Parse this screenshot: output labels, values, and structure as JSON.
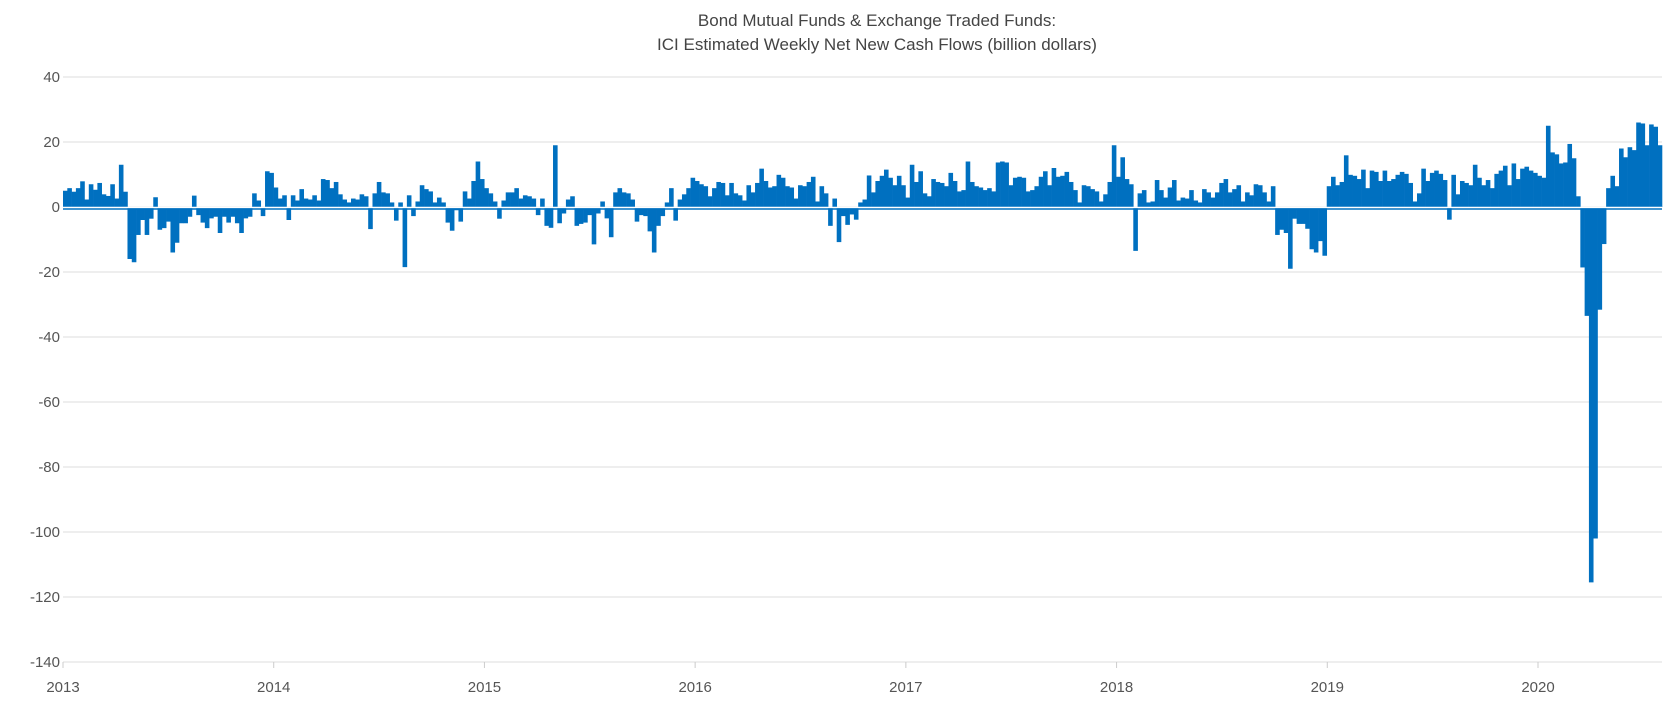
{
  "chart_data": {
    "type": "bar",
    "title": [
      "Bond Mutual Funds & Exchange Traded Funds:",
      "ICI Estimated Weekly Net New Cash Flows (billion dollars)"
    ],
    "xlabel": "",
    "ylabel": "",
    "frequency": "weekly",
    "xlim": [
      "2013-01",
      "2020-06"
    ],
    "x_tick_labels": [
      "2013",
      "2014",
      "2015",
      "2016",
      "2017",
      "2018",
      "2019",
      "2020"
    ],
    "ylim": [
      -140,
      40
    ],
    "y_ticks": [
      40,
      20,
      0,
      -20,
      -40,
      -60,
      -80,
      -100,
      -120,
      -140
    ],
    "grid": "horizontal",
    "legend": "none",
    "color": "#0070c0",
    "values": [
      5,
      5.8,
      4.7,
      5.8,
      7.9,
      2.3,
      7,
      5.3,
      7.4,
      3.9,
      3.4,
      7,
      2.6,
      13,
      4.7,
      -16,
      -17,
      -8.6,
      -4,
      -8.6,
      -3.6,
      3,
      -7,
      -6.5,
      -4.5,
      -14,
      -11,
      -5,
      -5,
      -3,
      3.5,
      -2.5,
      -4.8,
      -6.5,
      -3.5,
      -3,
      -8,
      -3,
      -4.8,
      -3,
      -5,
      -8,
      -3.5,
      -3,
      4.2,
      2,
      -2.8,
      11,
      10.5,
      6,
      2.6,
      3.6,
      -4,
      3.6,
      2,
      5.5,
      2.6,
      2.3,
      3.6,
      2,
      8.6,
      8.3,
      5.8,
      7.7,
      3.9,
      2.3,
      1.4,
      2.6,
      2.3,
      3.9,
      3.3,
      -6.8,
      4.2,
      7.7,
      4.5,
      4.2,
      1.4,
      -4.2,
      1.4,
      -18.5,
      3.6,
      -2.8,
      1.7,
      6.7,
      5.5,
      4.8,
      1.4,
      2.9,
      1.4,
      -4.8,
      -7.3,
      -1,
      -4.5,
      4.8,
      2.6,
      8,
      14,
      8.6,
      5.8,
      4.2,
      1.7,
      -3.6,
      2,
      4.5,
      4.5,
      5.8,
      2.6,
      3.6,
      3.3,
      2.6,
      -2.5,
      2.6,
      -5.8,
      -6.4,
      19,
      -5,
      -2,
      2.3,
      3.3,
      -5.8,
      -5.2,
      -4.8,
      -2.5,
      -11.5,
      -2,
      1.7,
      -3.5,
      -9.3,
      4.5,
      5.8,
      4.5,
      4.2,
      2.3,
      -4.5,
      -2.5,
      -2.8,
      -7.5,
      -14,
      -5.8,
      -2.8,
      1.4,
      5.8,
      -4.2,
      2.3,
      3.9,
      5.8,
      9,
      8,
      7,
      6.4,
      3.3,
      5.8,
      7.7,
      7.4,
      3.6,
      7.4,
      4.2,
      3.6,
      2,
      6.7,
      4.5,
      7.4,
      11.8,
      8,
      6,
      6.4,
      9.9,
      9,
      6.4,
      6,
      2.6,
      6.7,
      6.4,
      7.7,
      9.3,
      1.7,
      6.4,
      4.2,
      -5.8,
      2.6,
      -10.8,
      -2.8,
      -5.5,
      -2.3,
      -3.9,
      1.4,
      2.3,
      9.7,
      4.5,
      8,
      9.6,
      11.5,
      9,
      6.7,
      9.6,
      6.7,
      2.9,
      13,
      7.7,
      11,
      4.2,
      3.3,
      8.6,
      7.7,
      7.4,
      6.4,
      10.5,
      8,
      4.8,
      5.2,
      14,
      7.7,
      6.4,
      6,
      5.2,
      5.8,
      4.8,
      13.7,
      14,
      13.7,
      6.7,
      9,
      9.3,
      9,
      4.8,
      5.2,
      6.4,
      9.3,
      11,
      6.7,
      12,
      9.3,
      9.6,
      10.8,
      7.7,
      5.2,
      1.4,
      6.7,
      6.4,
      5.5,
      4.8,
      1.7,
      3.9,
      7.7,
      19,
      9.3,
      15.3,
      8.6,
      7,
      -13.5,
      4.2,
      5.2,
      1.4,
      1.7,
      8.3,
      5.2,
      2.9,
      6,
      8.3,
      2,
      2.9,
      2.6,
      5.2,
      2,
      1.4,
      5.5,
      4.5,
      2.9,
      4.5,
      7.4,
      8.6,
      4.5,
      5.5,
      6.7,
      1.7,
      4.5,
      3.6,
      7,
      6.7,
      4.5,
      1.7,
      6.4,
      -8.6,
      -7,
      -8,
      -19,
      -3.6,
      -5.2,
      -5.2,
      -6.7,
      -13,
      -14,
      -10.5,
      -15,
      6.4,
      9.3,
      6.7,
      7.7,
      15.9,
      9.9,
      9.6,
      8.6,
      11.5,
      5.8,
      11.2,
      10.8,
      8,
      11.2,
      8,
      8.6,
      9.9,
      10.8,
      10.2,
      7.4,
      1.7,
      4.2,
      11.8,
      8,
      10.5,
      11.2,
      10.2,
      8.3,
      -3.9,
      9.9,
      3.9,
      8,
      7.4,
      6.7,
      13,
      9,
      6.7,
      8.3,
      5.8,
      10.2,
      11.2,
      12.7,
      6.7,
      13.4,
      8.6,
      11.8,
      12.4,
      11.2,
      10.5,
      9.6,
      9,
      25,
      16.8,
      16.2,
      13.4,
      13.7,
      19.4,
      15,
      3.3,
      -18.6,
      -33.5,
      -115.5,
      -102,
      -31.6,
      -11.4,
      5.8,
      9.6,
      6.4,
      18,
      15.3,
      18.4,
      17.5,
      26,
      25.7,
      19,
      25.4,
      24.7,
      19
    ]
  }
}
